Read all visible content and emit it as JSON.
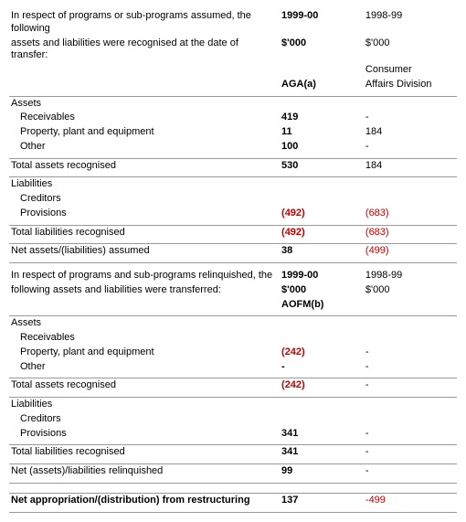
{
  "section1": {
    "intro_l1": "In respect of programs or sub-programs assumed, the following",
    "intro_l2": "assets and liabilities were recognised at the date of transfer:",
    "h1_year": "1999-00",
    "h1_unit": "$'000",
    "h1_sub": "AGA(a)",
    "h2_year": "1998-99",
    "h2_unit": "$'000",
    "h2_sub1": "Consumer",
    "h2_sub2": "Affairs Division",
    "assets_label": "Assets",
    "rows": {
      "receivables": {
        "label": "Receivables",
        "a": "419",
        "b": "-"
      },
      "ppe": {
        "label": "Property, plant and equipment",
        "a": "11",
        "b": "184"
      },
      "other": {
        "label": "Other",
        "a": "100",
        "b": "-"
      }
    },
    "total_assets": {
      "label": "Total assets recognised",
      "a": "530",
      "b": "184"
    },
    "liab_label": "Liabilities",
    "creditors_label": "Creditors",
    "provisions": {
      "label": "Provisions",
      "a": "(492)",
      "b": "(683)"
    },
    "total_liab": {
      "label": "Total liabilities recognised",
      "a": "(492)",
      "b": "(683)"
    },
    "net": {
      "label": "Net assets/(liabilities) assumed",
      "a": "38",
      "b": "(499)"
    }
  },
  "section2": {
    "intro_l1": "In respect of programs and sub-programs relinquished, the",
    "intro_l2": "following assets and liabilities were transferred:",
    "h1_year": "1999-00",
    "h1_unit": "$'000",
    "h1_sub": "AOFM(b)",
    "h2_year": "1998-99",
    "h2_unit": "$'000",
    "assets_label": "Assets",
    "rows": {
      "receivables": {
        "label": "Receivables",
        "a": "",
        "b": ""
      },
      "ppe": {
        "label": "Property, plant and equipment",
        "a": "(242)",
        "b": "-"
      },
      "other": {
        "label": "Other",
        "a": "-",
        "b": "-"
      }
    },
    "total_assets": {
      "label": "Total assets recognised",
      "a": "(242)",
      "b": "-"
    },
    "liab_label": "Liabilities",
    "creditors_label": "Creditors",
    "provisions": {
      "label": "Provisions",
      "a": "341",
      "b": "-"
    },
    "total_liab": {
      "label": "Total liabilities recognised",
      "a": "341",
      "b": "-"
    },
    "net": {
      "label": "Net (assets)/liabilities relinquished",
      "a": "99",
      "b": "-"
    }
  },
  "final": {
    "label": "Net appropriation/(distribution) from restructuring",
    "a": "137",
    "b": "-499"
  }
}
